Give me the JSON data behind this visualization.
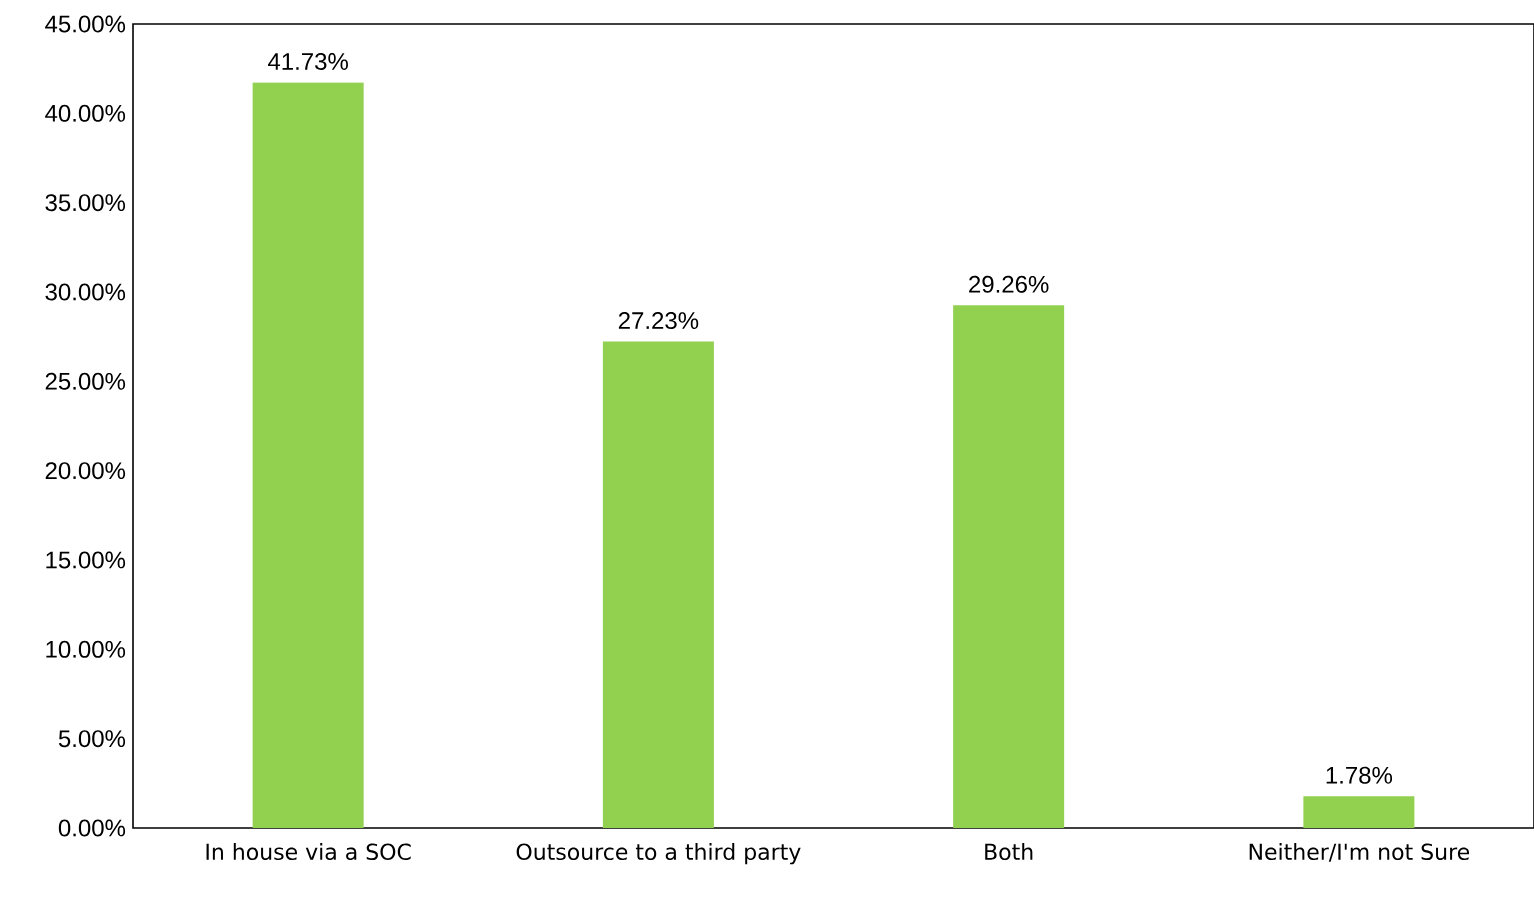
{
  "chart_data": {
    "type": "bar",
    "categories": [
      "In house via a SOC",
      "Outsource to a third party",
      "Both",
      "Neither/I'm not Sure"
    ],
    "values": [
      41.73,
      27.23,
      29.26,
      1.78
    ],
    "value_labels": [
      "41.73%",
      "27.23%",
      "29.26%",
      "1.78%"
    ],
    "color": "#92d050",
    "ylim": [
      0,
      45
    ],
    "yticks": [
      {
        "value": 0,
        "label": "0.00%"
      },
      {
        "value": 5,
        "label": "5.00%"
      },
      {
        "value": 10,
        "label": "10.00%"
      },
      {
        "value": 15,
        "label": "15.00%"
      },
      {
        "value": 20,
        "label": "20.00%"
      },
      {
        "value": 25,
        "label": "25.00%"
      },
      {
        "value": 30,
        "label": "30.00%"
      },
      {
        "value": 35,
        "label": "35.00%"
      },
      {
        "value": 40,
        "label": "40.00%"
      },
      {
        "value": 45,
        "label": "45.00%"
      }
    ],
    "grid": false
  }
}
